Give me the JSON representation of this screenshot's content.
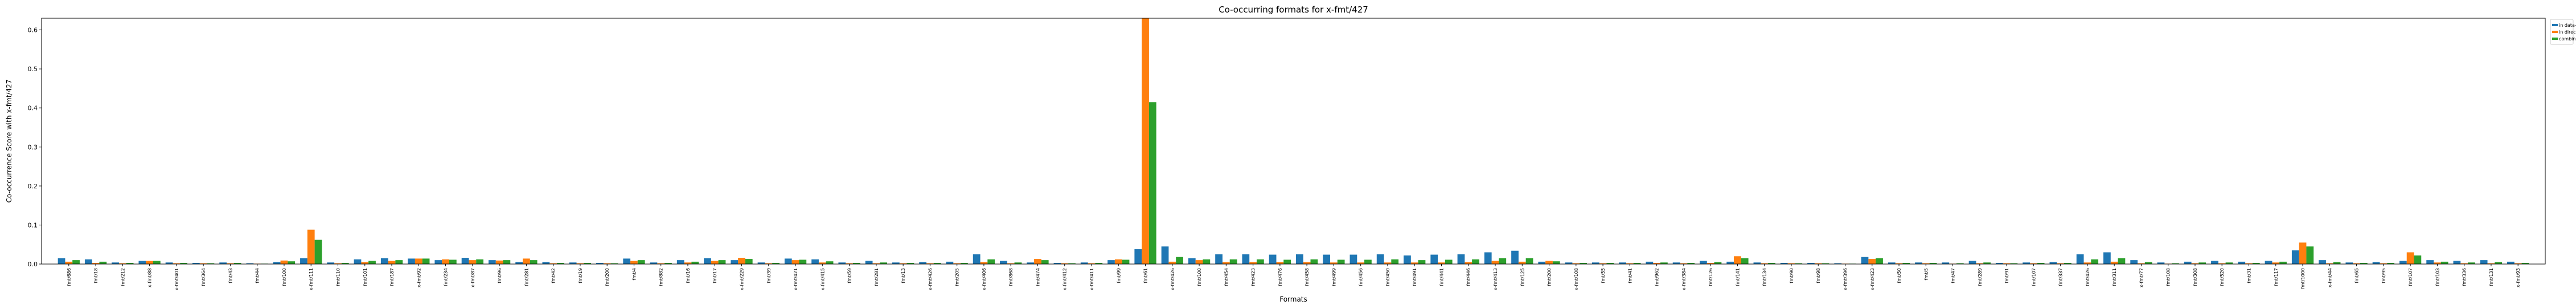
{
  "chart_data": {
    "type": "bar",
    "title": "Co-occurring formats for x-fmt/427",
    "xlabel": "Formats",
    "ylabel": "Co-occurrence Score with x-fmt/427",
    "ylim": [
      0,
      0.63
    ],
    "yticks": [
      0.0,
      0.1,
      0.2,
      0.3,
      0.4,
      0.5,
      0.6
    ],
    "grid": false,
    "legend_position": "top-right, outside plot",
    "categories": [
      "fmt/686",
      "fmt/18",
      "fmt/212",
      "x-fmt/88",
      "x-fmt/401",
      "fmt/364",
      "fmt/43",
      "fmt/44",
      "fmt/100",
      "x-fmt/111",
      "fmt/110",
      "fmt/101",
      "fmt/187",
      "x-fmt/92",
      "fmt/234",
      "x-fmt/87",
      "fmt/96",
      "fmt/281",
      "fmt/42",
      "fmt/19",
      "fmt/200",
      "fmt/4",
      "fmt/882",
      "fmt/16",
      "fmt/17",
      "x-fmt/229",
      "fmt/39",
      "x-fmt/421",
      "x-fmt/415",
      "fmt/59",
      "fmt/281",
      "fmt/13",
      "x-fmt/426",
      "fmt/205",
      "x-fmt/406",
      "fmt/868",
      "fmt/474",
      "x-fmt/412",
      "x-fmt/411",
      "fmt/99",
      "fmt/61",
      "x-fmt/426",
      "fmt/100",
      "fmt/454",
      "fmt/423",
      "fmt/476",
      "fmt/458",
      "fmt/499",
      "fmt/456",
      "fmt/450",
      "fmt/491",
      "fmt/441",
      "fmt/446",
      "x-fmt/413",
      "fmt/125",
      "fmt/200",
      "x-fmt/108",
      "fmt/55",
      "fmt/41",
      "fmt/962",
      "x-fmt/384",
      "fmt/126",
      "fmt/141",
      "fmt/134",
      "fmt/90",
      "fmt/98",
      "x-fmt/396",
      "x-fmt/423",
      "fmt/50",
      "fmt/5",
      "fmt/47",
      "fmt/289",
      "fmt/91",
      "fmt/107",
      "fmt/337",
      "fmt/426",
      "fmt/311",
      "x-fmt/77",
      "fmt/108",
      "fmt/308",
      "fmt/520",
      "fmt/31",
      "fmt/117",
      "fmt/1000",
      "x-fmt/44",
      "fmt/65",
      "fmt/95",
      "fmt/107",
      "fmt/103",
      "fmt/336",
      "fmt/131",
      "x-fmt/93"
    ],
    "series": [
      {
        "name": "in data-objects",
        "color": "#1f77b4",
        "values": [
          0.015,
          0.012,
          0.004,
          0.008,
          0.004,
          0.003,
          0.004,
          0.002,
          0.005,
          0.015,
          0.004,
          0.012,
          0.015,
          0.014,
          0.01,
          0.016,
          0.01,
          0.005,
          0.005,
          0.004,
          0.003,
          0.014,
          0.004,
          0.01,
          0.015,
          0.01,
          0.004,
          0.014,
          0.012,
          0.004,
          0.008,
          0.004,
          0.005,
          0.006,
          0.025,
          0.008,
          0.004,
          0.003,
          0.004,
          0.01,
          0.038,
          0.045,
          0.015,
          0.025,
          0.025,
          0.024,
          0.025,
          0.024,
          0.024,
          0.025,
          0.022,
          0.024,
          0.025,
          0.03,
          0.034,
          0.006,
          0.004,
          0.004,
          0.004,
          0.006,
          0.004,
          0.008,
          0.006,
          0.004,
          0.003,
          0.003,
          0.002,
          0.018,
          0.004,
          0.004,
          0.004,
          0.008,
          0.003,
          0.004,
          0.005,
          0.025,
          0.03,
          0.01,
          0.004,
          0.006,
          0.008,
          0.006,
          0.008,
          0.035,
          0.01,
          0.004,
          0.005,
          0.008,
          0.01,
          0.008,
          0.01,
          0.006
        ]
      },
      {
        "name": "in directories",
        "color": "#ff7f0e",
        "values": [
          0.006,
          0.003,
          0.002,
          0.008,
          0.002,
          0.002,
          0.002,
          0.001,
          0.009,
          0.088,
          0.002,
          0.005,
          0.008,
          0.014,
          0.012,
          0.01,
          0.009,
          0.014,
          0.002,
          0.002,
          0.002,
          0.008,
          0.002,
          0.004,
          0.008,
          0.016,
          0.002,
          0.01,
          0.004,
          0.002,
          0.002,
          0.002,
          0.002,
          0.002,
          0.005,
          0.002,
          0.013,
          0.002,
          0.002,
          0.012,
          0.63,
          0.006,
          0.01,
          0.005,
          0.005,
          0.005,
          0.005,
          0.004,
          0.004,
          0.004,
          0.004,
          0.004,
          0.005,
          0.008,
          0.006,
          0.008,
          0.002,
          0.002,
          0.002,
          0.003,
          0.002,
          0.003,
          0.02,
          0.002,
          0.002,
          0.002,
          0.001,
          0.013,
          0.002,
          0.002,
          0.001,
          0.002,
          0.002,
          0.002,
          0.002,
          0.004,
          0.006,
          0.002,
          0.001,
          0.002,
          0.002,
          0.002,
          0.004,
          0.055,
          0.002,
          0.002,
          0.002,
          0.03,
          0.004,
          0.002,
          0.002,
          0.002
        ]
      },
      {
        "name": "combined",
        "color": "#2ca02c",
        "values": [
          0.01,
          0.006,
          0.003,
          0.008,
          0.003,
          0.002,
          0.003,
          0.001,
          0.007,
          0.062,
          0.003,
          0.008,
          0.01,
          0.014,
          0.011,
          0.012,
          0.01,
          0.01,
          0.003,
          0.003,
          0.002,
          0.01,
          0.003,
          0.006,
          0.01,
          0.013,
          0.003,
          0.011,
          0.007,
          0.003,
          0.004,
          0.003,
          0.003,
          0.003,
          0.012,
          0.004,
          0.01,
          0.002,
          0.003,
          0.011,
          0.415,
          0.018,
          0.012,
          0.012,
          0.012,
          0.011,
          0.012,
          0.011,
          0.011,
          0.012,
          0.01,
          0.011,
          0.012,
          0.015,
          0.015,
          0.007,
          0.003,
          0.003,
          0.003,
          0.004,
          0.003,
          0.005,
          0.015,
          0.003,
          0.002,
          0.002,
          0.001,
          0.015,
          0.003,
          0.003,
          0.002,
          0.004,
          0.002,
          0.003,
          0.003,
          0.012,
          0.015,
          0.005,
          0.002,
          0.004,
          0.004,
          0.003,
          0.006,
          0.045,
          0.005,
          0.003,
          0.003,
          0.022,
          0.006,
          0.004,
          0.005,
          0.003
        ]
      }
    ]
  }
}
